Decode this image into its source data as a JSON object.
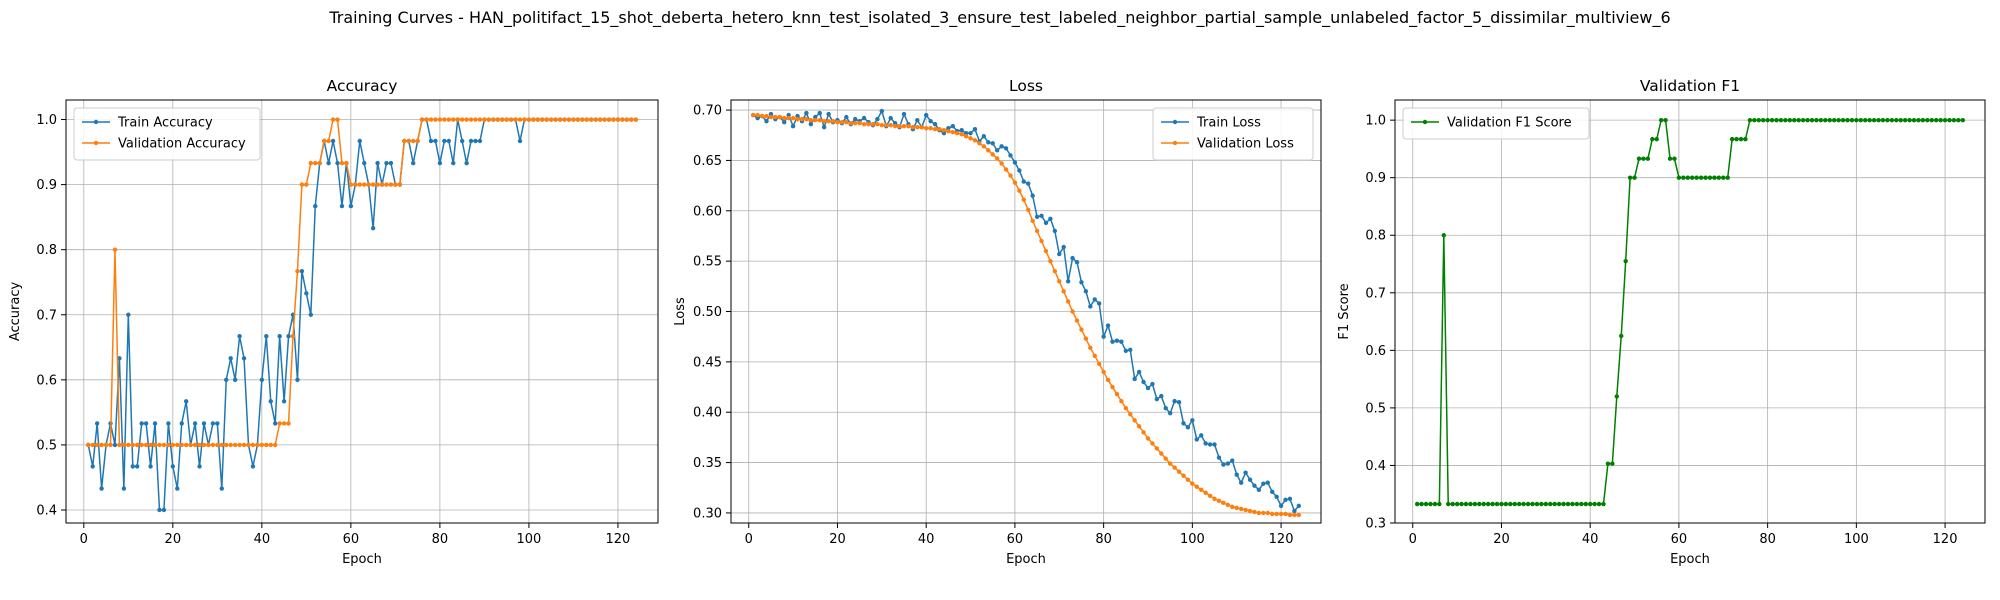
{
  "figure": {
    "title": "Training Curves - HAN_politifact_15_shot_deberta_hetero_knn_test_isolated_3_ensure_test_labeled_neighbor_partial_sample_unlabeled_factor_5_dissimilar_multiview_6"
  },
  "colors": {
    "train": "#1f77b4",
    "validation": "#ff7f0e",
    "f1": "#008000",
    "grid": "#b0b0b0"
  },
  "chart_data": [
    {
      "type": "line",
      "title": "Accuracy",
      "xlabel": "Epoch",
      "ylabel": "Accuracy",
      "xlim": [
        -4,
        129
      ],
      "ylim": [
        0.38,
        1.03
      ],
      "xticks": [
        0,
        20,
        40,
        60,
        80,
        100,
        120
      ],
      "yticks": [
        0.4,
        0.5,
        0.6,
        0.7,
        0.8,
        0.9,
        1.0
      ],
      "ytick_labels": [
        "0.4",
        "0.5",
        "0.6",
        "0.7",
        "0.8",
        "0.9",
        "1.0"
      ],
      "grid": true,
      "legend_position": "upper-left",
      "x_start": 1,
      "series": [
        {
          "name": "Train Accuracy",
          "color": "#1f77b4",
          "values": [
            0.5,
            0.467,
            0.533,
            0.433,
            0.5,
            0.533,
            0.5,
            0.633,
            0.433,
            0.7,
            0.467,
            0.467,
            0.533,
            0.533,
            0.467,
            0.533,
            0.4,
            0.4,
            0.533,
            0.467,
            0.433,
            0.533,
            0.567,
            0.5,
            0.533,
            0.467,
            0.533,
            0.5,
            0.533,
            0.533,
            0.433,
            0.6,
            0.633,
            0.6,
            0.667,
            0.633,
            0.5,
            0.467,
            0.5,
            0.6,
            0.667,
            0.567,
            0.533,
            0.667,
            0.567,
            0.667,
            0.7,
            0.6,
            0.767,
            0.733,
            0.7,
            0.867,
            0.933,
            0.967,
            0.933,
            0.967,
            0.933,
            0.867,
            0.933,
            0.867,
            0.9,
            0.967,
            0.933,
            0.9,
            0.833,
            0.933,
            0.9,
            0.933,
            0.933,
            0.9,
            0.9,
            0.967,
            0.967,
            0.933,
            0.967,
            1.0,
            1.0,
            0.967,
            0.967,
            0.933,
            0.967,
            0.967,
            0.933,
            1.0,
            0.967,
            0.933,
            0.967,
            0.967,
            0.967,
            1.0,
            1.0,
            1.0,
            1.0,
            1.0,
            1.0,
            1.0,
            1.0,
            0.967,
            1.0,
            1.0,
            1.0,
            1.0,
            1.0,
            1.0,
            1.0,
            1.0,
            1.0,
            1.0,
            1.0,
            1.0,
            1.0,
            1.0,
            1.0,
            1.0,
            1.0,
            1.0,
            1.0,
            1.0,
            1.0,
            1.0,
            1.0,
            1.0,
            1.0,
            1.0
          ]
        },
        {
          "name": "Validation Accuracy",
          "color": "#ff7f0e",
          "values": [
            0.5,
            0.5,
            0.5,
            0.5,
            0.5,
            0.5,
            0.8,
            0.5,
            0.5,
            0.5,
            0.5,
            0.5,
            0.5,
            0.5,
            0.5,
            0.5,
            0.5,
            0.5,
            0.5,
            0.5,
            0.5,
            0.5,
            0.5,
            0.5,
            0.5,
            0.5,
            0.5,
            0.5,
            0.5,
            0.5,
            0.5,
            0.5,
            0.5,
            0.5,
            0.5,
            0.5,
            0.5,
            0.5,
            0.5,
            0.5,
            0.5,
            0.5,
            0.5,
            0.533,
            0.533,
            0.533,
            0.667,
            0.767,
            0.9,
            0.9,
            0.933,
            0.933,
            0.933,
            0.967,
            0.967,
            1.0,
            1.0,
            0.933,
            0.933,
            0.9,
            0.9,
            0.9,
            0.9,
            0.9,
            0.9,
            0.9,
            0.9,
            0.9,
            0.9,
            0.9,
            0.9,
            0.967,
            0.967,
            0.967,
            0.967,
            1.0,
            1.0,
            1.0,
            1.0,
            1.0,
            1.0,
            1.0,
            1.0,
            1.0,
            1.0,
            1.0,
            1.0,
            1.0,
            1.0,
            1.0,
            1.0,
            1.0,
            1.0,
            1.0,
            1.0,
            1.0,
            1.0,
            1.0,
            1.0,
            1.0,
            1.0,
            1.0,
            1.0,
            1.0,
            1.0,
            1.0,
            1.0,
            1.0,
            1.0,
            1.0,
            1.0,
            1.0,
            1.0,
            1.0,
            1.0,
            1.0,
            1.0,
            1.0,
            1.0,
            1.0,
            1.0,
            1.0,
            1.0,
            1.0
          ]
        }
      ]
    },
    {
      "type": "line",
      "title": "Loss",
      "xlabel": "Epoch",
      "ylabel": "Loss",
      "xlim": [
        -4,
        129
      ],
      "ylim": [
        0.29,
        0.71
      ],
      "xticks": [
        0,
        20,
        40,
        60,
        80,
        100,
        120
      ],
      "yticks": [
        0.3,
        0.35,
        0.4,
        0.45,
        0.5,
        0.55,
        0.6,
        0.65,
        0.7
      ],
      "ytick_labels": [
        "0.30",
        "0.35",
        "0.40",
        "0.45",
        "0.50",
        "0.55",
        "0.60",
        "0.65",
        "0.70"
      ],
      "grid": true,
      "legend_position": "upper-right",
      "x_start": 1,
      "series": [
        {
          "name": "Train Loss",
          "color": "#1f77b4",
          "values": [
            0.695,
            0.692,
            0.694,
            0.689,
            0.696,
            0.691,
            0.693,
            0.688,
            0.695,
            0.684,
            0.694,
            0.689,
            0.697,
            0.686,
            0.693,
            0.697,
            0.683,
            0.696,
            0.688,
            0.69,
            0.687,
            0.693,
            0.686,
            0.691,
            0.689,
            0.692,
            0.688,
            0.685,
            0.691,
            0.699,
            0.684,
            0.692,
            0.687,
            0.683,
            0.696,
            0.686,
            0.681,
            0.69,
            0.683,
            0.695,
            0.689,
            0.686,
            0.68,
            0.677,
            0.682,
            0.684,
            0.679,
            0.68,
            0.677,
            0.677,
            0.681,
            0.669,
            0.674,
            0.668,
            0.667,
            0.66,
            0.664,
            0.662,
            0.655,
            0.648,
            0.64,
            0.629,
            0.627,
            0.615,
            0.594,
            0.595,
            0.588,
            0.592,
            0.58,
            0.557,
            0.564,
            0.53,
            0.553,
            0.549,
            0.529,
            0.52,
            0.505,
            0.512,
            0.508,
            0.475,
            0.486,
            0.47,
            0.471,
            0.47,
            0.461,
            0.462,
            0.433,
            0.44,
            0.43,
            0.424,
            0.428,
            0.413,
            0.416,
            0.404,
            0.399,
            0.411,
            0.41,
            0.389,
            0.385,
            0.392,
            0.373,
            0.377,
            0.369,
            0.368,
            0.368,
            0.355,
            0.348,
            0.349,
            0.352,
            0.338,
            0.33,
            0.34,
            0.333,
            0.327,
            0.323,
            0.329,
            0.33,
            0.321,
            0.316,
            0.307,
            0.313,
            0.314,
            0.302,
            0.307
          ]
        },
        {
          "name": "Validation Loss",
          "color": "#ff7f0e",
          "values": [
            0.695,
            0.695,
            0.694,
            0.694,
            0.693,
            0.693,
            0.693,
            0.692,
            0.692,
            0.692,
            0.691,
            0.691,
            0.691,
            0.69,
            0.69,
            0.69,
            0.689,
            0.689,
            0.689,
            0.688,
            0.688,
            0.688,
            0.687,
            0.687,
            0.687,
            0.686,
            0.686,
            0.686,
            0.686,
            0.685,
            0.685,
            0.685,
            0.684,
            0.684,
            0.684,
            0.684,
            0.683,
            0.683,
            0.683,
            0.682,
            0.682,
            0.681,
            0.681,
            0.68,
            0.679,
            0.678,
            0.677,
            0.676,
            0.674,
            0.672,
            0.67,
            0.667,
            0.664,
            0.66,
            0.656,
            0.652,
            0.647,
            0.641,
            0.635,
            0.628,
            0.62,
            0.611,
            0.601,
            0.59,
            0.58,
            0.57,
            0.56,
            0.55,
            0.54,
            0.53,
            0.52,
            0.51,
            0.5,
            0.491,
            0.482,
            0.473,
            0.464,
            0.456,
            0.448,
            0.44,
            0.432,
            0.425,
            0.418,
            0.411,
            0.404,
            0.398,
            0.392,
            0.386,
            0.38,
            0.374,
            0.369,
            0.364,
            0.359,
            0.354,
            0.349,
            0.345,
            0.341,
            0.337,
            0.333,
            0.329,
            0.326,
            0.323,
            0.32,
            0.317,
            0.314,
            0.312,
            0.31,
            0.308,
            0.306,
            0.305,
            0.304,
            0.303,
            0.302,
            0.301,
            0.3,
            0.3,
            0.3,
            0.299,
            0.299,
            0.299,
            0.299,
            0.298,
            0.298,
            0.298
          ]
        }
      ]
    },
    {
      "type": "line",
      "title": "Validation F1",
      "xlabel": "Epoch",
      "ylabel": "F1 Score",
      "xlim": [
        -4,
        129
      ],
      "ylim": [
        0.3,
        1.035
      ],
      "xticks": [
        0,
        20,
        40,
        60,
        80,
        100,
        120
      ],
      "yticks": [
        0.3,
        0.4,
        0.5,
        0.6,
        0.7,
        0.8,
        0.9,
        1.0
      ],
      "ytick_labels": [
        "0.3",
        "0.4",
        "0.5",
        "0.6",
        "0.7",
        "0.8",
        "0.9",
        "1.0"
      ],
      "grid": true,
      "legend_position": "upper-left",
      "x_start": 1,
      "series": [
        {
          "name": "Validation F1 Score",
          "color": "#008000",
          "values": [
            0.333,
            0.333,
            0.333,
            0.333,
            0.333,
            0.333,
            0.8,
            0.333,
            0.333,
            0.333,
            0.333,
            0.333,
            0.333,
            0.333,
            0.333,
            0.333,
            0.333,
            0.333,
            0.333,
            0.333,
            0.333,
            0.333,
            0.333,
            0.333,
            0.333,
            0.333,
            0.333,
            0.333,
            0.333,
            0.333,
            0.333,
            0.333,
            0.333,
            0.333,
            0.333,
            0.333,
            0.333,
            0.333,
            0.333,
            0.333,
            0.333,
            0.333,
            0.333,
            0.403,
            0.403,
            0.52,
            0.625,
            0.755,
            0.9,
            0.9,
            0.933,
            0.933,
            0.933,
            0.967,
            0.967,
            1.0,
            1.0,
            0.933,
            0.933,
            0.9,
            0.9,
            0.9,
            0.9,
            0.9,
            0.9,
            0.9,
            0.9,
            0.9,
            0.9,
            0.9,
            0.9,
            0.967,
            0.967,
            0.967,
            0.967,
            1.0,
            1.0,
            1.0,
            1.0,
            1.0,
            1.0,
            1.0,
            1.0,
            1.0,
            1.0,
            1.0,
            1.0,
            1.0,
            1.0,
            1.0,
            1.0,
            1.0,
            1.0,
            1.0,
            1.0,
            1.0,
            1.0,
            1.0,
            1.0,
            1.0,
            1.0,
            1.0,
            1.0,
            1.0,
            1.0,
            1.0,
            1.0,
            1.0,
            1.0,
            1.0,
            1.0,
            1.0,
            1.0,
            1.0,
            1.0,
            1.0,
            1.0,
            1.0,
            1.0,
            1.0,
            1.0,
            1.0,
            1.0,
            1.0
          ]
        }
      ]
    }
  ]
}
